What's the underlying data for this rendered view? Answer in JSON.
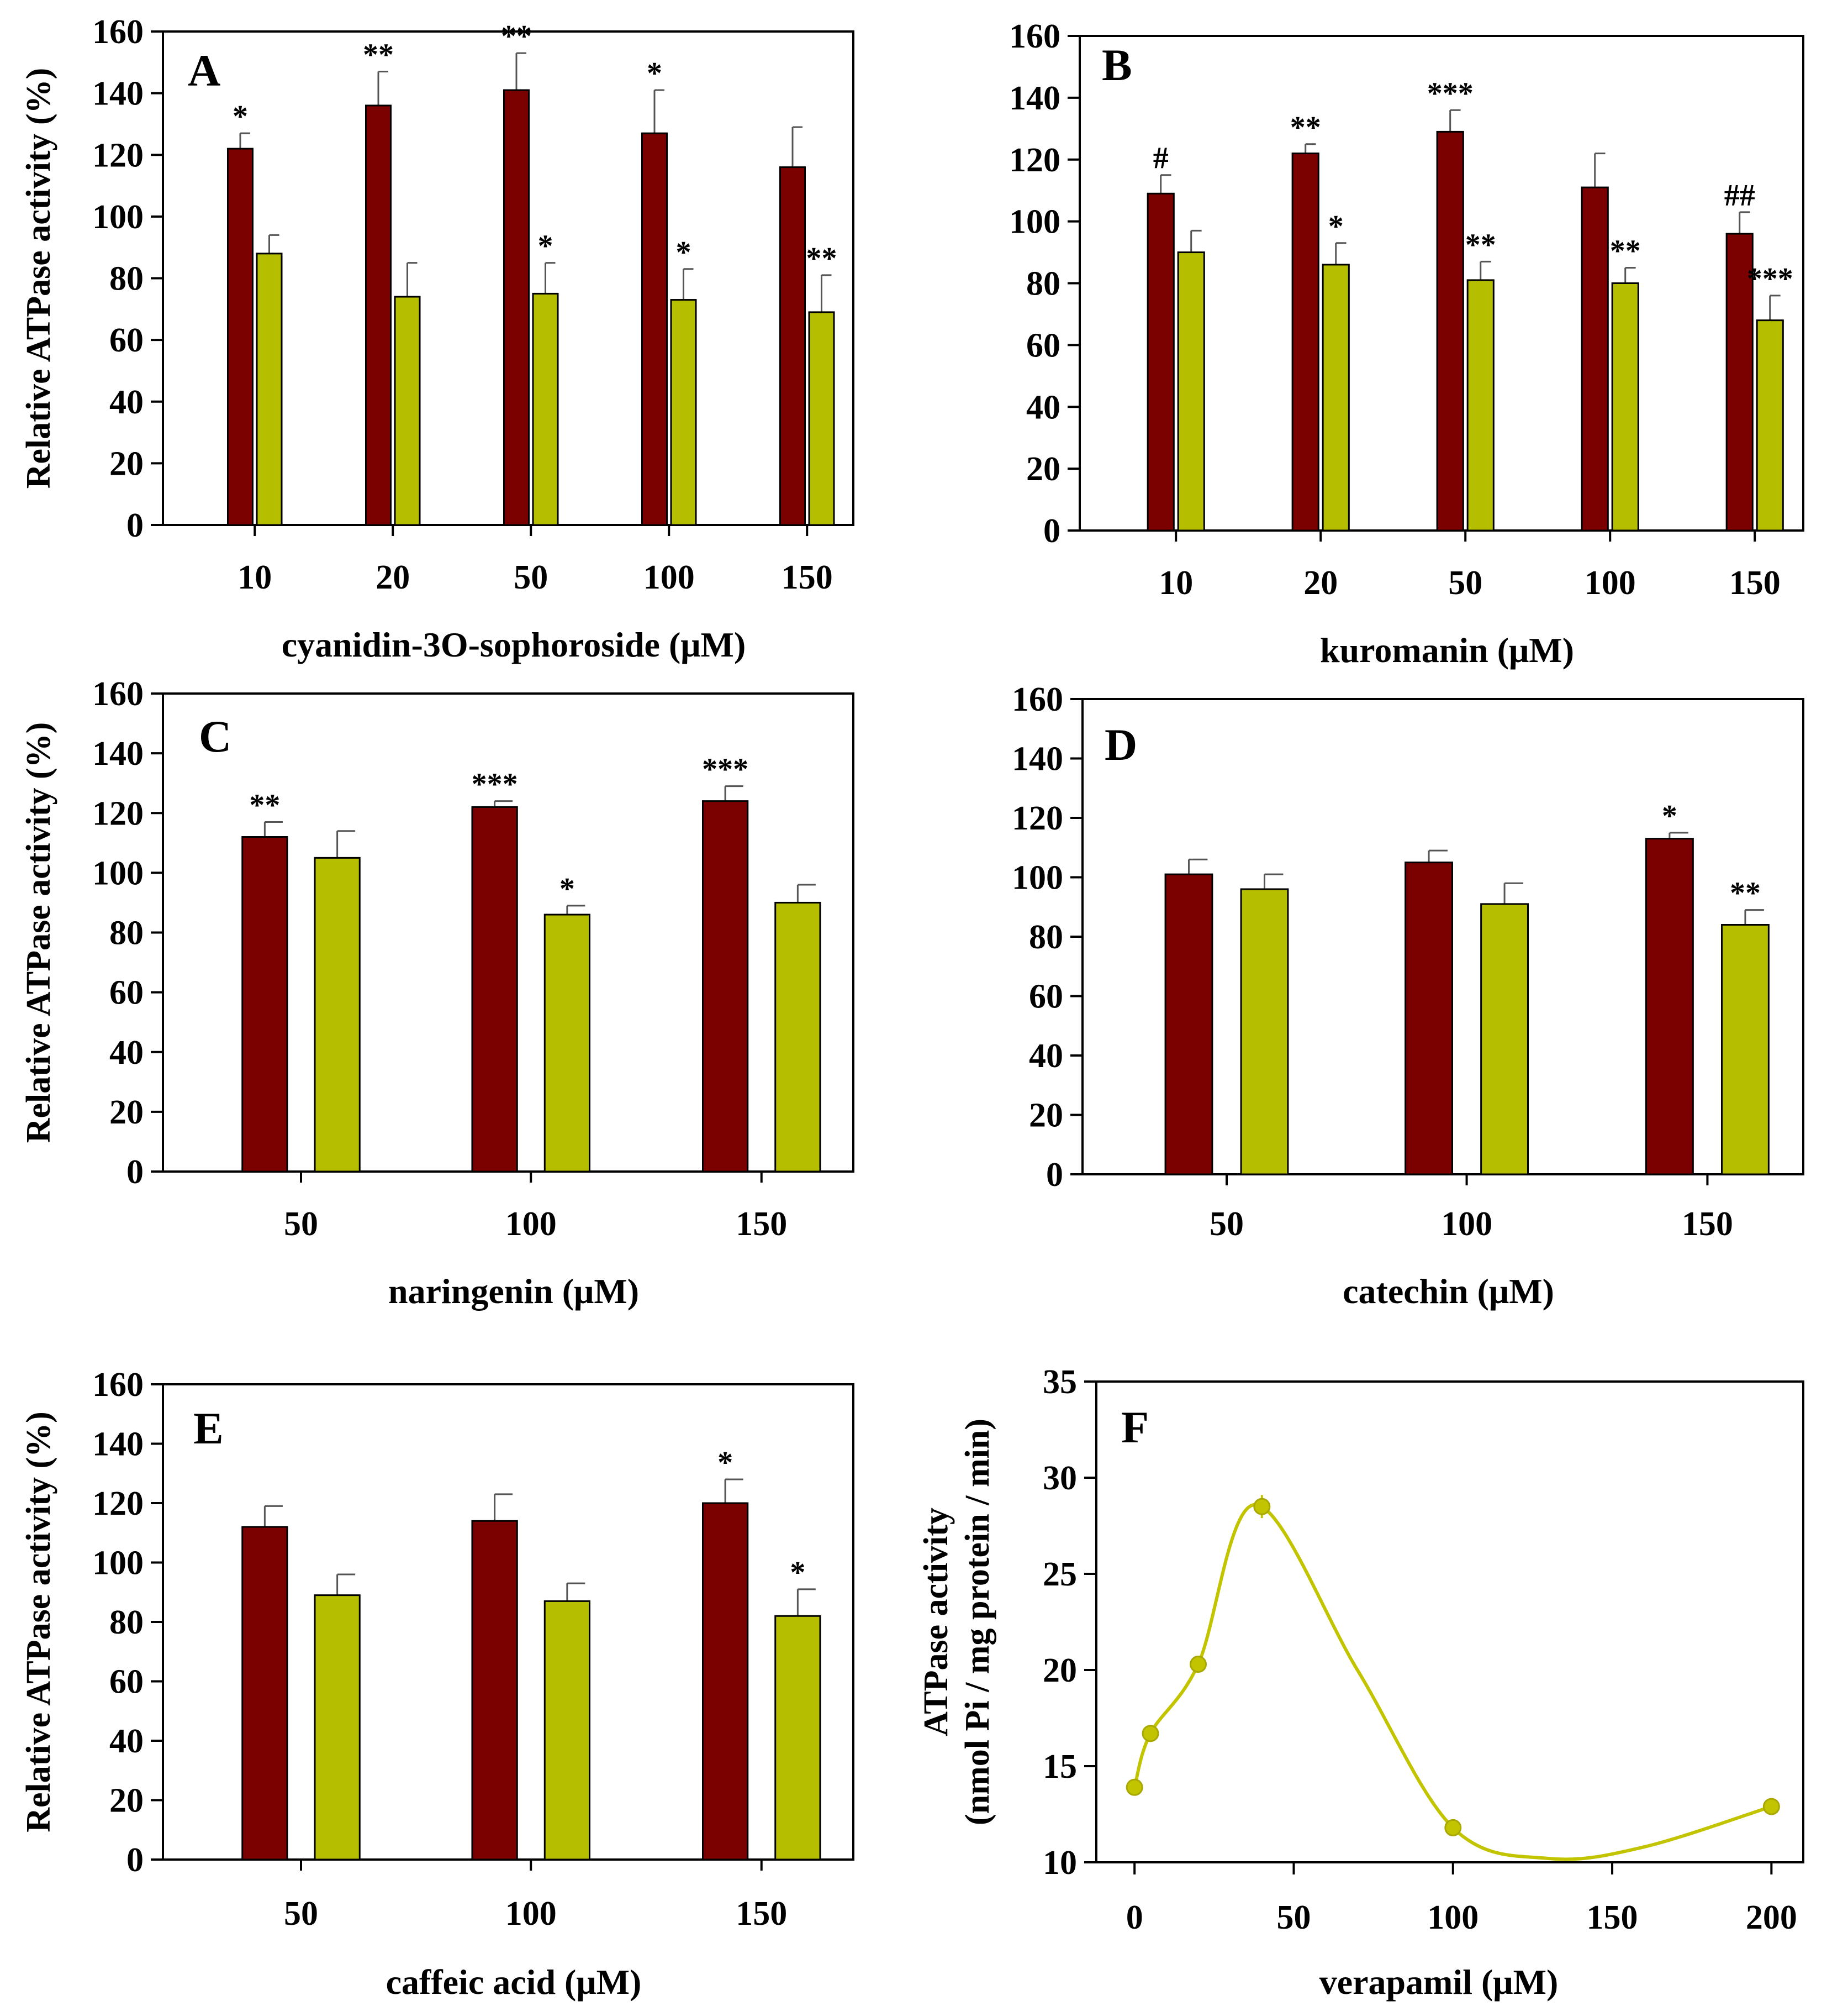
{
  "figure": {
    "colors": {
      "series1": "#7b0000",
      "series2": "#b5bf00",
      "line": "#c2c400",
      "axis": "#000000"
    }
  },
  "chart_data": [
    {
      "panel": "A",
      "type": "bar",
      "ylabel": "Relative ATPase activity (%)",
      "xlabel": "cyanidin-3O-sophoroside (μM)",
      "ylim": [
        0,
        160
      ],
      "yticks": [
        0,
        20,
        40,
        60,
        80,
        100,
        120,
        140,
        160
      ],
      "categories": [
        "10",
        "20",
        "50",
        "100",
        "150"
      ],
      "series": [
        {
          "name": "series1",
          "values": [
            122,
            136,
            141,
            127,
            116
          ],
          "errors": [
            5,
            11,
            12,
            14,
            13
          ],
          "annotations": [
            "*",
            "**",
            "**",
            "*",
            ""
          ]
        },
        {
          "name": "series2",
          "values": [
            88,
            74,
            75,
            73,
            69
          ],
          "errors": [
            6,
            11,
            10,
            10,
            12
          ],
          "annotations": [
            "",
            "",
            "*",
            "*",
            "**"
          ]
        }
      ]
    },
    {
      "panel": "B",
      "type": "bar",
      "ylabel": "",
      "xlabel": "kuromanin (μM)",
      "ylim": [
        0,
        160
      ],
      "yticks": [
        0,
        20,
        40,
        60,
        80,
        100,
        120,
        140,
        160
      ],
      "categories": [
        "10",
        "20",
        "50",
        "100",
        "150"
      ],
      "series": [
        {
          "name": "series1",
          "values": [
            109,
            122,
            129,
            111,
            96
          ],
          "errors": [
            6,
            3,
            7,
            11,
            7
          ],
          "annotations": [
            "#",
            "**",
            "***",
            "",
            "##"
          ]
        },
        {
          "name": "series2",
          "values": [
            90,
            86,
            81,
            80,
            68
          ],
          "errors": [
            7,
            7,
            6,
            5,
            8
          ],
          "annotations": [
            "",
            "*",
            "**",
            "**",
            "***"
          ]
        }
      ]
    },
    {
      "panel": "C",
      "type": "bar",
      "ylabel": "Relative ATPase activity (%)",
      "xlabel": "naringenin (μM)",
      "ylim": [
        0,
        160
      ],
      "yticks": [
        0,
        20,
        40,
        60,
        80,
        100,
        120,
        140,
        160
      ],
      "categories": [
        "50",
        "100",
        "150"
      ],
      "series": [
        {
          "name": "series1",
          "values": [
            112,
            122,
            124
          ],
          "errors": [
            5,
            2,
            5
          ],
          "annotations": [
            "**",
            "***",
            "***"
          ]
        },
        {
          "name": "series2",
          "values": [
            105,
            86,
            90
          ],
          "errors": [
            9,
            3,
            6
          ],
          "annotations": [
            "",
            "*",
            ""
          ]
        }
      ]
    },
    {
      "panel": "D",
      "type": "bar",
      "ylabel": "",
      "xlabel": "catechin (μM)",
      "ylim": [
        0,
        160
      ],
      "yticks": [
        0,
        20,
        40,
        60,
        80,
        100,
        120,
        140,
        160
      ],
      "categories": [
        "50",
        "100",
        "150"
      ],
      "series": [
        {
          "name": "series1",
          "values": [
            101,
            105,
            113
          ],
          "errors": [
            5,
            4,
            2
          ],
          "annotations": [
            "",
            "",
            "*"
          ]
        },
        {
          "name": "series2",
          "values": [
            96,
            91,
            84
          ],
          "errors": [
            5,
            7,
            5
          ],
          "annotations": [
            "",
            "",
            "**"
          ]
        }
      ]
    },
    {
      "panel": "E",
      "type": "bar",
      "ylabel": "Relative ATPase activity (%)",
      "xlabel": "caffeic acid (μM)",
      "ylim": [
        0,
        160
      ],
      "yticks": [
        0,
        20,
        40,
        60,
        80,
        100,
        120,
        140,
        160
      ],
      "categories": [
        "50",
        "100",
        "150"
      ],
      "series": [
        {
          "name": "series1",
          "values": [
            112,
            114,
            120
          ],
          "errors": [
            7,
            9,
            8
          ],
          "annotations": [
            "",
            "",
            "*"
          ]
        },
        {
          "name": "series2",
          "values": [
            89,
            87,
            82
          ],
          "errors": [
            7,
            6,
            9
          ],
          "annotations": [
            "",
            "",
            "*"
          ]
        }
      ]
    },
    {
      "panel": "F",
      "type": "line",
      "ylabel_line1": "ATPase activity",
      "ylabel_line2": "(nmol Pi / mg protein / min)",
      "xlabel": "verapamil (μM)",
      "xlim": [
        -12,
        210
      ],
      "xticks": [
        0,
        50,
        100,
        150,
        200
      ],
      "ylim": [
        10,
        35
      ],
      "yticks": [
        10,
        15,
        20,
        25,
        30,
        35
      ],
      "points": [
        {
          "x": 0,
          "y": 13.9
        },
        {
          "x": 5,
          "y": 16.7
        },
        {
          "x": 20,
          "y": 20.3
        },
        {
          "x": 40,
          "y": 28.5
        },
        {
          "x": 100,
          "y": 11.8
        },
        {
          "x": 200,
          "y": 12.9
        }
      ],
      "errors": [
        0.2,
        0.3,
        0.3,
        0.6,
        0.3,
        0.3
      ],
      "curve": [
        {
          "x": 0,
          "y": 13.9
        },
        {
          "x": 5,
          "y": 16.7
        },
        {
          "x": 20,
          "y": 20.3
        },
        {
          "x": 38,
          "y": 28.6
        },
        {
          "x": 70,
          "y": 20
        },
        {
          "x": 100,
          "y": 11.8
        },
        {
          "x": 130,
          "y": 10.2
        },
        {
          "x": 160,
          "y": 10.8
        },
        {
          "x": 200,
          "y": 12.9
        }
      ]
    }
  ]
}
